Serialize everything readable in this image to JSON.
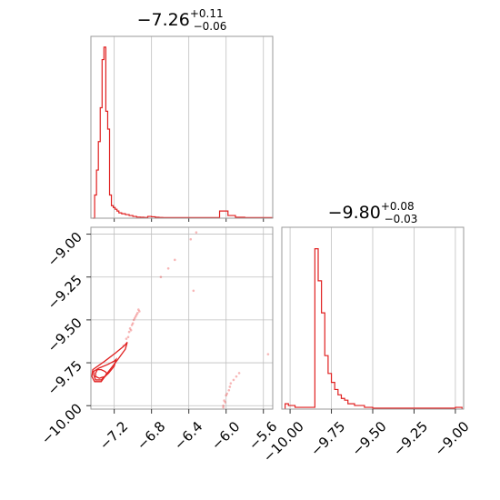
{
  "colors": {
    "series": "#e02020",
    "grid": "#bfbfbf",
    "frame": "#9a9a9a"
  },
  "chart_data": [
    {
      "type": "histogram",
      "panel": "top-left",
      "title": {
        "median": "−7.26",
        "plus": "+0.11",
        "minus": "−0.06"
      },
      "xlim": [
        -7.45,
        -5.5
      ],
      "xticks": [
        -7.2,
        -6.8,
        -6.4,
        -6.0,
        -5.6
      ],
      "grid": true,
      "bin_edges": [
        -7.43,
        -7.41,
        -7.39,
        -7.37,
        -7.35,
        -7.33,
        -7.31,
        -7.29,
        -7.27,
        -7.25,
        -7.23,
        -7.21,
        -7.19,
        -7.17,
        -7.15,
        -7.12,
        -7.08,
        -7.04,
        -7.0,
        -6.96,
        -6.92,
        -6.88,
        -6.84,
        -6.8,
        -6.76,
        -6.72,
        -6.68,
        -6.6,
        -6.5,
        -6.4,
        -6.3,
        -6.2,
        -6.1,
        -6.07,
        -6.02,
        -5.98,
        -5.9,
        -5.8,
        -5.7,
        -5.6,
        -5.5
      ],
      "counts": [
        0.0,
        0.13,
        0.27,
        0.43,
        0.62,
        0.89,
        0.96,
        0.6,
        0.5,
        0.13,
        0.07,
        0.06,
        0.05,
        0.04,
        0.03,
        0.025,
        0.02,
        0.015,
        0.01,
        0.006,
        0.005,
        0.004,
        0.01,
        0.008,
        0.005,
        0.004,
        0.003,
        0.003,
        0.003,
        0.003,
        0.003,
        0.003,
        0.003,
        0.04,
        0.04,
        0.015,
        0.005,
        0.003,
        0.003,
        0.003
      ]
    },
    {
      "type": "scatter",
      "panel": "bottom-left",
      "xlim": [
        -7.45,
        -5.5
      ],
      "ylim": [
        -10.02,
        -8.96
      ],
      "xticks": [
        -7.2,
        -6.8,
        -6.4,
        -6.0,
        -5.6
      ],
      "xticklabels": [
        "−7.2",
        "−6.8",
        "−6.4",
        "−6.0",
        "−5.6"
      ],
      "yticks": [
        -10.0,
        -9.75,
        -9.5,
        -9.25,
        -9.0
      ],
      "yticklabels": [
        "−10.00",
        "−9.75",
        "−9.50",
        "−9.25",
        "−9.00"
      ],
      "grid": true,
      "contours": [
        [
          [
            -7.4,
            -9.81
          ],
          [
            -7.38,
            -9.79
          ],
          [
            -7.34,
            -9.79
          ],
          [
            -7.3,
            -9.8
          ],
          [
            -7.28,
            -9.81
          ],
          [
            -7.3,
            -9.83
          ],
          [
            -7.36,
            -9.84
          ],
          [
            -7.4,
            -9.83
          ],
          [
            -7.4,
            -9.81
          ]
        ],
        [
          [
            -7.42,
            -9.8
          ],
          [
            -7.36,
            -9.78
          ],
          [
            -7.27,
            -9.76
          ],
          [
            -7.2,
            -9.74
          ],
          [
            -7.18,
            -9.73
          ],
          [
            -7.2,
            -9.77
          ],
          [
            -7.26,
            -9.81
          ],
          [
            -7.34,
            -9.85
          ],
          [
            -7.4,
            -9.85
          ],
          [
            -7.42,
            -9.82
          ],
          [
            -7.42,
            -9.8
          ]
        ],
        [
          [
            -7.43,
            -9.79
          ],
          [
            -7.3,
            -9.74
          ],
          [
            -7.18,
            -9.69
          ],
          [
            -7.09,
            -9.65
          ],
          [
            -7.06,
            -9.63
          ],
          [
            -7.08,
            -9.67
          ],
          [
            -7.16,
            -9.73
          ],
          [
            -7.26,
            -9.8
          ],
          [
            -7.34,
            -9.86
          ],
          [
            -7.41,
            -9.86
          ],
          [
            -7.44,
            -9.83
          ],
          [
            -7.43,
            -9.79
          ]
        ]
      ],
      "points": [
        [
          -6.95,
          -9.46
        ],
        [
          -6.93,
          -9.45
        ],
        [
          -6.97,
          -9.48
        ],
        [
          -6.99,
          -9.5
        ],
        [
          -7.01,
          -9.53
        ],
        [
          -7.03,
          -9.55
        ],
        [
          -6.96,
          -9.47
        ],
        [
          -6.94,
          -9.44
        ],
        [
          -7.02,
          -9.56
        ],
        [
          -7.05,
          -9.6
        ],
        [
          -7.0,
          -9.52
        ],
        [
          -6.98,
          -9.49
        ],
        [
          -7.07,
          -9.61
        ],
        [
          -7.04,
          -9.57
        ],
        [
          -7.1,
          -9.65
        ],
        [
          -6.7,
          -9.25
        ],
        [
          -6.62,
          -9.2
        ],
        [
          -6.55,
          -9.15
        ],
        [
          -6.38,
          -9.03
        ],
        [
          -6.35,
          -9.33
        ],
        [
          -6.32,
          -8.99
        ],
        [
          -5.92,
          -9.85
        ],
        [
          -5.89,
          -9.83
        ],
        [
          -5.95,
          -9.87
        ],
        [
          -5.97,
          -9.91
        ],
        [
          -6.0,
          -9.94
        ],
        [
          -6.02,
          -9.97
        ],
        [
          -6.03,
          -10.0
        ],
        [
          -6.01,
          -9.98
        ],
        [
          -5.99,
          -9.93
        ],
        [
          -6.03,
          -10.01
        ],
        [
          -5.96,
          -9.89
        ],
        [
          -5.86,
          -9.81
        ],
        [
          -5.55,
          -9.7
        ]
      ]
    },
    {
      "type": "histogram",
      "panel": "bottom-right",
      "title": {
        "median": "−9.80",
        "plus": "+0.08",
        "minus": "−0.03"
      },
      "xlim": [
        -10.05,
        -8.95
      ],
      "xticks": [
        -10.0,
        -9.75,
        -9.5,
        -9.25,
        -9.0
      ],
      "xticklabels": [
        "−10.00",
        "−9.75",
        "−9.50",
        "−9.25",
        "−9.00"
      ],
      "grid": true,
      "bin_edges": [
        -10.03,
        -10.01,
        -9.99,
        -9.97,
        -9.95,
        -9.93,
        -9.91,
        -9.89,
        -9.87,
        -9.85,
        -9.83,
        -9.81,
        -9.79,
        -9.77,
        -9.75,
        -9.73,
        -9.71,
        -9.69,
        -9.67,
        -9.65,
        -9.63,
        -9.61,
        -9.59,
        -9.55,
        -9.5,
        -9.4,
        -9.3,
        -9.2,
        -9.1,
        -9.0,
        -8.96
      ],
      "counts": [
        0.03,
        0.02,
        0.02,
        0.01,
        0.01,
        0.01,
        0.01,
        0.01,
        0.01,
        0.9,
        0.72,
        0.54,
        0.3,
        0.2,
        0.15,
        0.11,
        0.08,
        0.06,
        0.05,
        0.03,
        0.03,
        0.02,
        0.02,
        0.01,
        0.005,
        0.005,
        0.005,
        0.005,
        0.005,
        0.01
      ]
    }
  ]
}
